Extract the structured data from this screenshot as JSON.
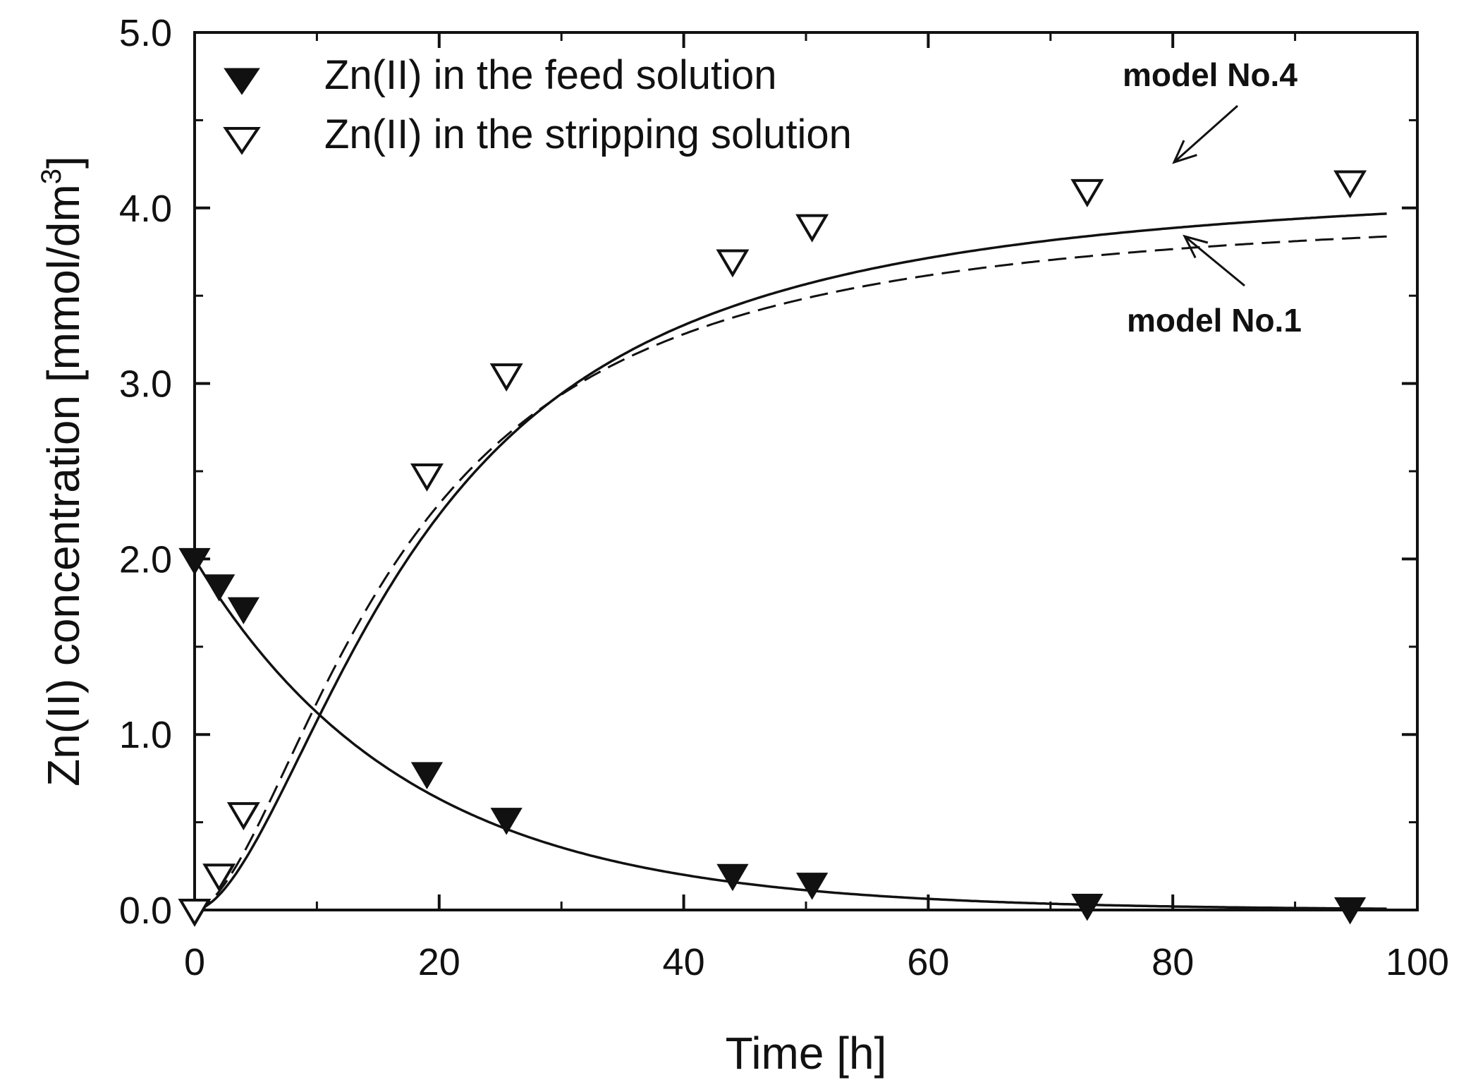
{
  "chart_data": {
    "type": "scatter",
    "title": "",
    "xlabel": "Time [h]",
    "ylabel": "Zn(II) concentration [mmol/dm",
    "ylabel_superscript": "3",
    "ylabel_suffix": "]",
    "xlim": [
      0,
      100
    ],
    "ylim": [
      0,
      5
    ],
    "xticks": [
      "0",
      "20",
      "40",
      "60",
      "80",
      "100"
    ],
    "yticks": [
      "0.0",
      "1.0",
      "2.0",
      "3.0",
      "4.0",
      "5.0"
    ],
    "grid": false,
    "legend": {
      "placement": "top-left",
      "entries": [
        "Zn(II) in the feed solution",
        "Zn(II) in the stripping solution"
      ]
    },
    "series": [
      {
        "name": "Zn(II) in the feed solution",
        "marker": "filled-triangle-down",
        "x": [
          0,
          2,
          4,
          19,
          25.5,
          44,
          50.5,
          73,
          94.5
        ],
        "y": [
          2.0,
          1.85,
          1.72,
          0.78,
          0.52,
          0.2,
          0.15,
          0.03,
          0.01
        ]
      },
      {
        "name": "Zn(II) in the stripping solution",
        "marker": "open-triangle-down",
        "x": [
          0,
          2,
          4,
          19,
          25.5,
          44,
          50.5,
          73,
          94.5
        ],
        "y": [
          0.0,
          0.2,
          0.55,
          2.48,
          3.05,
          3.7,
          3.9,
          4.1,
          4.15
        ]
      }
    ],
    "model_curves": [
      {
        "name": "feed model",
        "style": "solid",
        "function": "exp",
        "c0": 2.0,
        "k": 0.0575,
        "x_end": 97.5
      },
      {
        "name": "model No.4",
        "style": "solid",
        "function": "sigmoid",
        "a": 4.18,
        "t0": 6.0,
        "n": 1.75,
        "x_end": 97.5
      },
      {
        "name": "model No.1",
        "style": "dashed",
        "function": "sigmoid",
        "a": 4.03,
        "t0": 5.5,
        "n": 1.7,
        "x_end": 97.5
      }
    ],
    "annotations": [
      {
        "text": "model No.4",
        "target": "model No.4",
        "points_to": [
          80,
          4.16
        ]
      },
      {
        "text": "model No.1",
        "target": "model No.1",
        "points_to": [
          80,
          3.95
        ]
      }
    ]
  }
}
